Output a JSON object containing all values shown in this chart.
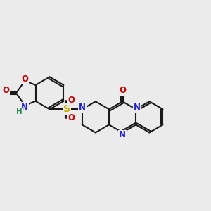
{
  "bg_color": "#ebebeb",
  "bond_color": "#1a1a1a",
  "N_color": "#2222cc",
  "O_color": "#cc0000",
  "S_color": "#ccaa00",
  "H_color": "#2e8b57",
  "lw": 1.5,
  "fs": 8.5,
  "xlim": [
    0,
    10
  ],
  "ylim": [
    0,
    10
  ]
}
